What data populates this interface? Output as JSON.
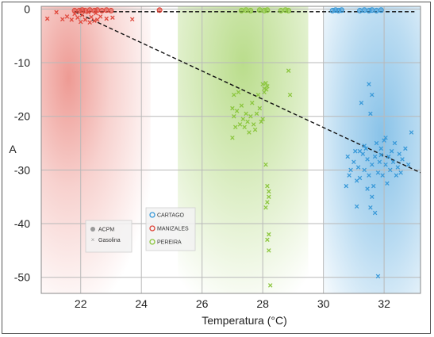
{
  "chart_data": {
    "type": "scatter",
    "xlabel": "Temperatura (°C)",
    "ylabel": "A",
    "xlim": [
      20.7,
      33.2
    ],
    "ylim": [
      -53,
      0.5
    ],
    "xticks": [
      "22",
      "24",
      "26",
      "28",
      "30",
      "32"
    ],
    "yticks": [
      "0",
      "-10",
      "-20",
      "-30",
      "-40",
      "-50"
    ],
    "xtick_values": [
      22,
      24,
      26,
      28,
      30,
      32
    ],
    "ytick_values": [
      0,
      -10,
      -20,
      -30,
      -40,
      -50
    ],
    "grid": true,
    "legend_markers": [
      {
        "label": "ACPM",
        "marker": "circle",
        "color": "#9a9a9a"
      },
      {
        "label": "Gasolina",
        "marker": "x",
        "color": "#9a9a9a"
      }
    ],
    "legend_cities": [
      {
        "label": "CARTAGO",
        "color": "#3a9ad9"
      },
      {
        "label": "MANIZALES",
        "color": "#e0483c"
      },
      {
        "label": "PEREIRA",
        "color": "#8cc63f"
      }
    ],
    "regions": [
      {
        "city": "MANIZALES",
        "x_range": [
          20.7,
          24.3
        ],
        "color": "#e0483c"
      },
      {
        "city": "PEREIRA",
        "x_range": [
          25.2,
          29.5
        ],
        "color": "#8cc63f"
      },
      {
        "city": "CARTAGO",
        "x_range": [
          30.0,
          33.2
        ],
        "color": "#3a9ad9"
      }
    ],
    "reference_lines": [
      {
        "points": [
          [
            21.8,
            -0.5
          ],
          [
            33.0,
            -0.5
          ]
        ],
        "style": "dashed",
        "color": "#111111"
      },
      {
        "points": [
          [
            21.8,
            -0.5
          ],
          [
            33.2,
            -30.5
          ]
        ],
        "style": "dashed",
        "color": "#111111"
      }
    ],
    "series": [
      {
        "name": "MANIZALES",
        "color": "#e0483c",
        "acpm": [
          [
            21.8,
            -0.3
          ],
          [
            21.95,
            -0.3
          ],
          [
            22.05,
            -0.2
          ],
          [
            22.15,
            -0.3
          ],
          [
            22.3,
            -0.2
          ],
          [
            22.45,
            -0.3
          ],
          [
            22.55,
            -0.2
          ],
          [
            22.7,
            -0.3
          ],
          [
            22.85,
            -0.2
          ],
          [
            23.0,
            -0.3
          ],
          [
            24.6,
            -0.2
          ]
        ],
        "gasolina": [
          [
            20.9,
            -1.8
          ],
          [
            21.2,
            -0.6
          ],
          [
            21.4,
            -1.9
          ],
          [
            21.55,
            -1.4
          ],
          [
            21.7,
            -2.0
          ],
          [
            21.8,
            -0.9
          ],
          [
            21.9,
            -1.6
          ],
          [
            22.0,
            -2.4
          ],
          [
            22.05,
            -1.1
          ],
          [
            22.15,
            -2.0
          ],
          [
            22.25,
            -0.6
          ],
          [
            22.3,
            -2.5
          ],
          [
            22.35,
            -1.5
          ],
          [
            22.45,
            -2.2
          ],
          [
            22.5,
            -0.8
          ],
          [
            22.55,
            -2.0
          ],
          [
            22.65,
            -1.4
          ],
          [
            22.85,
            -1.8
          ],
          [
            23.05,
            -1.6
          ],
          [
            23.7,
            -1.9
          ]
        ]
      },
      {
        "name": "PEREIRA",
        "color": "#8cc63f",
        "acpm": [
          [
            27.3,
            -0.3
          ],
          [
            27.45,
            -0.2
          ],
          [
            27.6,
            -0.3
          ],
          [
            27.9,
            -0.2
          ],
          [
            28.05,
            -0.3
          ],
          [
            28.15,
            -0.2
          ],
          [
            28.6,
            -0.3
          ],
          [
            28.75,
            -0.2
          ],
          [
            28.85,
            -0.3
          ]
        ],
        "gasolina": [
          [
            27.0,
            -18.5
          ],
          [
            27.05,
            -16.0
          ],
          [
            27.05,
            -20.0
          ],
          [
            27.1,
            -22.0
          ],
          [
            27.15,
            -19.0
          ],
          [
            27.2,
            -15.5
          ],
          [
            27.25,
            -21.5
          ],
          [
            27.3,
            -18.0
          ],
          [
            27.35,
            -20.5
          ],
          [
            27.4,
            -22.0
          ],
          [
            27.45,
            -19.5
          ],
          [
            27.5,
            -21.0
          ],
          [
            27.55,
            -23.0
          ],
          [
            27.6,
            -20.0
          ],
          [
            27.65,
            -17.5
          ],
          [
            27.7,
            -21.5
          ],
          [
            27.75,
            -22.5
          ],
          [
            27.8,
            -19.5
          ],
          [
            27.85,
            -16.0
          ],
          [
            27.9,
            -18.5
          ],
          [
            27.95,
            -21.0
          ],
          [
            28.0,
            -14.0
          ],
          [
            28.0,
            -20.5
          ],
          [
            28.05,
            -14.8
          ],
          [
            28.1,
            -13.8
          ],
          [
            28.12,
            -15.0
          ],
          [
            28.15,
            -14.4
          ],
          [
            28.1,
            -29.0
          ],
          [
            28.15,
            -33.0
          ],
          [
            28.2,
            -34.0
          ],
          [
            28.2,
            -35.0
          ],
          [
            28.15,
            -36.0
          ],
          [
            28.1,
            -37.0
          ],
          [
            28.2,
            -42.0
          ],
          [
            28.15,
            -43.0
          ],
          [
            28.2,
            -45.0
          ],
          [
            28.25,
            -51.5
          ],
          [
            28.05,
            -15.5
          ],
          [
            28.85,
            -11.5
          ],
          [
            28.9,
            -16.0
          ],
          [
            27.0,
            -24.0
          ]
        ]
      },
      {
        "name": "CARTAGO",
        "color": "#3a9ad9",
        "acpm": [
          [
            30.3,
            -0.3
          ],
          [
            30.4,
            -0.2
          ],
          [
            30.5,
            -0.3
          ],
          [
            30.6,
            -0.2
          ],
          [
            31.2,
            -0.3
          ],
          [
            31.35,
            -0.2
          ],
          [
            31.5,
            -0.3
          ],
          [
            31.6,
            -0.2
          ],
          [
            31.75,
            -0.3
          ],
          [
            31.9,
            -0.2
          ]
        ],
        "gasolina": [
          [
            30.75,
            -33.0
          ],
          [
            30.8,
            -27.5
          ],
          [
            30.85,
            -31.0
          ],
          [
            30.9,
            -30.0
          ],
          [
            31.0,
            -28.5
          ],
          [
            31.05,
            -26.5
          ],
          [
            31.1,
            -32.0
          ],
          [
            31.1,
            -36.8
          ],
          [
            31.15,
            -29.5
          ],
          [
            31.2,
            -31.5
          ],
          [
            31.25,
            -17.5
          ],
          [
            31.3,
            -27.0
          ],
          [
            31.35,
            -30.0
          ],
          [
            31.4,
            -26.0
          ],
          [
            31.45,
            -28.0
          ],
          [
            31.5,
            -31.0
          ],
          [
            31.5,
            -14.0
          ],
          [
            31.55,
            -19.5
          ],
          [
            31.55,
            -37.0
          ],
          [
            31.6,
            -16.0
          ],
          [
            31.6,
            -29.0
          ],
          [
            31.65,
            -33.0
          ],
          [
            31.7,
            -27.5
          ],
          [
            31.7,
            -38.0
          ],
          [
            31.75,
            -25.0
          ],
          [
            31.8,
            -30.5
          ],
          [
            31.8,
            -49.8
          ],
          [
            31.85,
            -28.5
          ],
          [
            31.9,
            -26.0
          ],
          [
            31.95,
            -31.0
          ],
          [
            32.0,
            -24.5
          ],
          [
            32.05,
            -29.0
          ],
          [
            32.1,
            -32.5
          ],
          [
            32.15,
            -27.5
          ],
          [
            32.2,
            -30.0
          ],
          [
            32.25,
            -26.5
          ],
          [
            32.3,
            -28.5
          ],
          [
            32.35,
            -25.0
          ],
          [
            32.4,
            -31.0
          ],
          [
            32.45,
            -29.5
          ],
          [
            32.5,
            -27.0
          ],
          [
            32.55,
            -30.5
          ],
          [
            32.6,
            -28.0
          ],
          [
            32.7,
            -26.0
          ],
          [
            32.8,
            -29.0
          ],
          [
            32.9,
            -23.0
          ],
          [
            31.2,
            -26.5
          ],
          [
            31.35,
            -25.5
          ],
          [
            31.9,
            -27.2
          ],
          [
            32.05,
            -24.0
          ],
          [
            31.45,
            -33.5
          ],
          [
            31.6,
            -35.0
          ]
        ]
      }
    ]
  }
}
